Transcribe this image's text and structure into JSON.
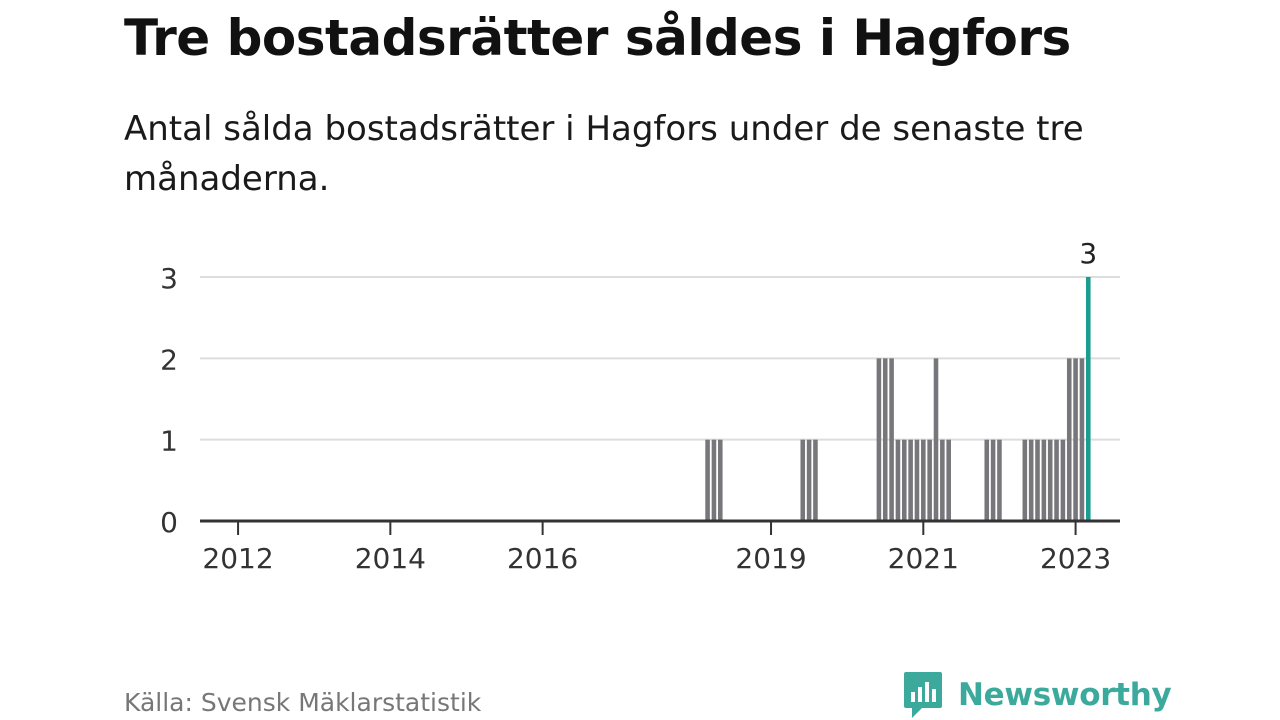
{
  "header": {
    "title": "Tre bostadsrätter såldes i Hagfors",
    "subtitle": "Antal sålda bostadsrätter i Hagfors under de senaste tre månaderna."
  },
  "footer": {
    "source": "Källa: Svensk Mäklarstatistik",
    "brand": "Newsworthy"
  },
  "colors": {
    "bar": "#77767b",
    "highlight": "#1a9c90",
    "grid": "#dddddd",
    "axis": "#333333",
    "brand": "#3ba99c"
  },
  "chart_data": {
    "type": "bar",
    "title": "",
    "xlabel": "",
    "ylabel": "",
    "ylim": [
      0,
      3
    ],
    "yticks": [
      "0",
      "1",
      "2",
      "3"
    ],
    "xticks": [
      {
        "label": "2012",
        "at": "2012-01"
      },
      {
        "label": "2014",
        "at": "2014-01"
      },
      {
        "label": "2016",
        "at": "2016-01"
      },
      {
        "label": "2019",
        "at": "2019-01"
      },
      {
        "label": "2021",
        "at": "2021-01"
      },
      {
        "label": "2023",
        "at": "2023-01"
      }
    ],
    "x_range": [
      "2011-07",
      "2023-08"
    ],
    "grid": true,
    "series": [
      {
        "points": [
          {
            "x": "2018-03",
            "y": 1
          },
          {
            "x": "2018-04",
            "y": 1
          },
          {
            "x": "2018-05",
            "y": 1
          },
          {
            "x": "2019-06",
            "y": 1
          },
          {
            "x": "2019-07",
            "y": 1
          },
          {
            "x": "2019-08",
            "y": 1
          },
          {
            "x": "2020-06",
            "y": 2
          },
          {
            "x": "2020-07",
            "y": 2
          },
          {
            "x": "2020-08",
            "y": 2
          },
          {
            "x": "2020-09",
            "y": 1
          },
          {
            "x": "2020-10",
            "y": 1
          },
          {
            "x": "2020-11",
            "y": 1
          },
          {
            "x": "2020-12",
            "y": 1
          },
          {
            "x": "2021-01",
            "y": 1
          },
          {
            "x": "2021-02",
            "y": 1
          },
          {
            "x": "2021-03",
            "y": 2
          },
          {
            "x": "2021-04",
            "y": 1
          },
          {
            "x": "2021-05",
            "y": 1
          },
          {
            "x": "2021-11",
            "y": 1
          },
          {
            "x": "2021-12",
            "y": 1
          },
          {
            "x": "2022-01",
            "y": 1
          },
          {
            "x": "2022-05",
            "y": 1
          },
          {
            "x": "2022-06",
            "y": 1
          },
          {
            "x": "2022-07",
            "y": 1
          },
          {
            "x": "2022-08",
            "y": 1
          },
          {
            "x": "2022-09",
            "y": 1
          },
          {
            "x": "2022-10",
            "y": 1
          },
          {
            "x": "2022-11",
            "y": 1
          },
          {
            "x": "2022-12",
            "y": 2
          },
          {
            "x": "2023-01",
            "y": 2
          },
          {
            "x": "2023-02",
            "y": 2
          },
          {
            "x": "2023-03",
            "y": 3,
            "highlight": true,
            "label": "3"
          }
        ]
      }
    ]
  }
}
